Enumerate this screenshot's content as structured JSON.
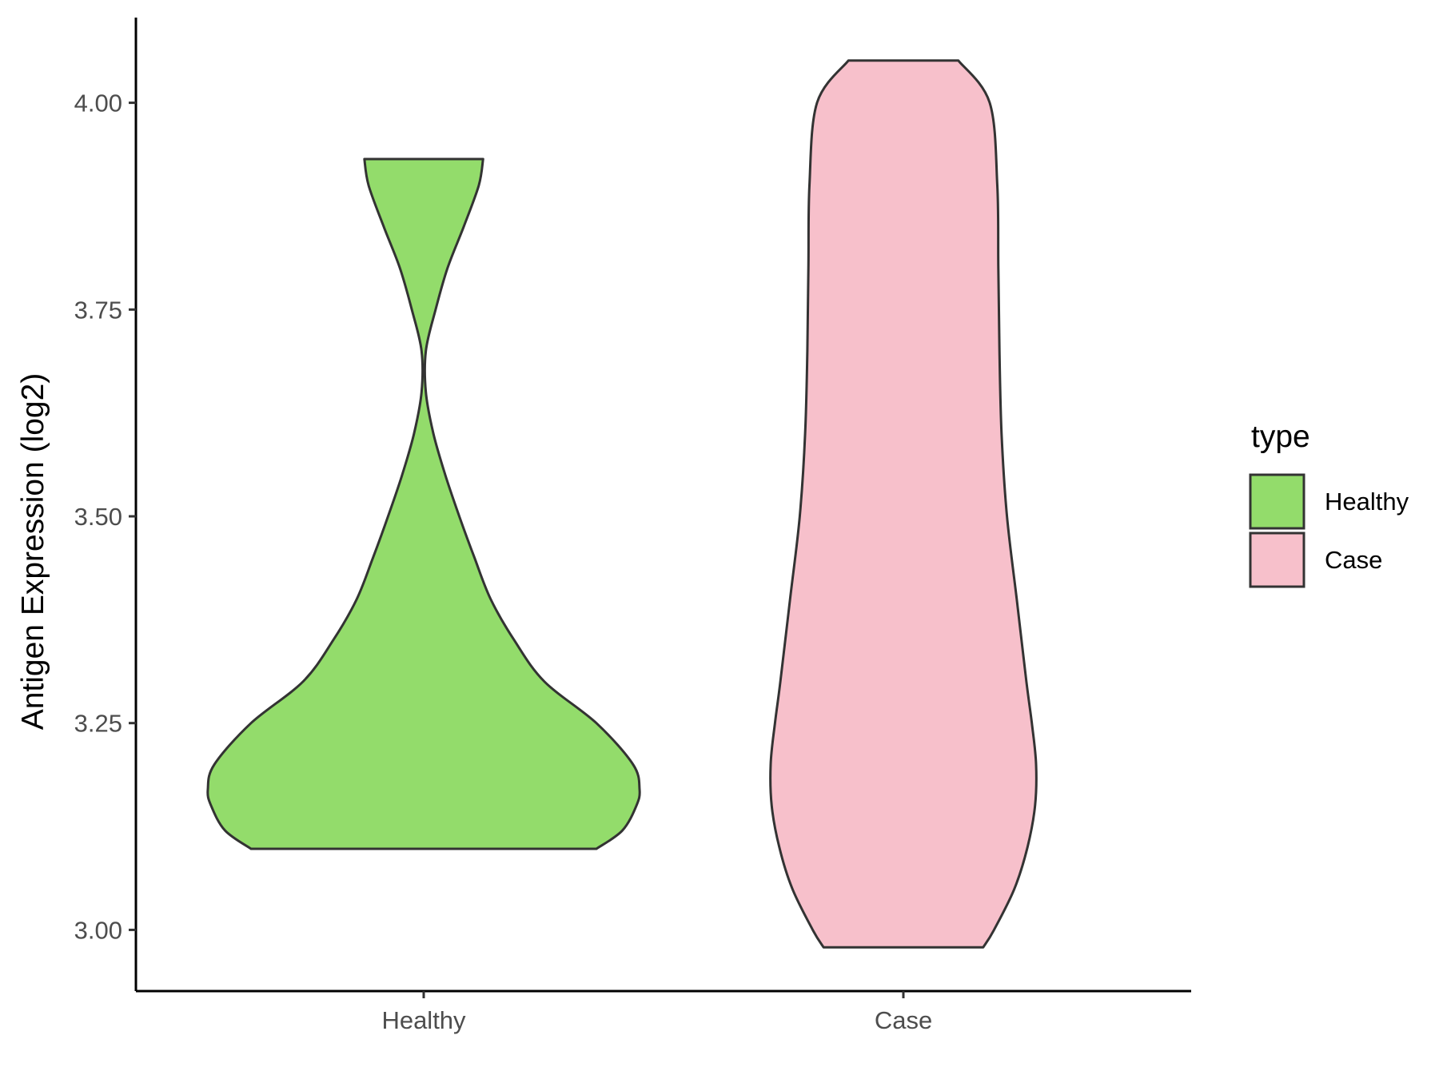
{
  "chart_data": {
    "type": "violin",
    "xlabel": "",
    "ylabel": "Antigen Expression (log2)",
    "categories": [
      "Healthy",
      "Case"
    ],
    "ylim": [
      2.926,
      4.103
    ],
    "yticks": [
      3.0,
      3.25,
      3.5,
      3.75,
      4.0
    ],
    "ytick_labels": [
      "3.00",
      "3.25",
      "3.50",
      "3.75",
      "4.00"
    ],
    "grid": false,
    "legend": {
      "title": "type",
      "placement": "right",
      "entries": [
        {
          "label": "Healthy",
          "color": "#93DC6B"
        },
        {
          "label": "Case",
          "color": "#F7C0CB"
        }
      ]
    },
    "series": [
      {
        "category": "Healthy",
        "color": "#93DC6B",
        "min": 3.098,
        "max": 3.932,
        "density_profile": [
          [
            3.098,
            0.8
          ],
          [
            3.12,
            0.92
          ],
          [
            3.15,
            0.985
          ],
          [
            3.17,
            1.0
          ],
          [
            3.2,
            0.97
          ],
          [
            3.25,
            0.8
          ],
          [
            3.3,
            0.56
          ],
          [
            3.35,
            0.42
          ],
          [
            3.4,
            0.31
          ],
          [
            3.45,
            0.235
          ],
          [
            3.5,
            0.165
          ],
          [
            3.55,
            0.1
          ],
          [
            3.6,
            0.045
          ],
          [
            3.65,
            0.01
          ],
          [
            3.7,
            0.01
          ],
          [
            3.75,
            0.055
          ],
          [
            3.8,
            0.11
          ],
          [
            3.85,
            0.185
          ],
          [
            3.9,
            0.255
          ],
          [
            3.932,
            0.275
          ]
        ]
      },
      {
        "category": "Case",
        "color": "#F7C0CB",
        "min": 2.979,
        "max": 4.051,
        "density_profile": [
          [
            2.979,
            0.37
          ],
          [
            3.0,
            0.42
          ],
          [
            3.05,
            0.515
          ],
          [
            3.1,
            0.575
          ],
          [
            3.15,
            0.61
          ],
          [
            3.2,
            0.615
          ],
          [
            3.25,
            0.595
          ],
          [
            3.3,
            0.57
          ],
          [
            3.4,
            0.525
          ],
          [
            3.5,
            0.48
          ],
          [
            3.6,
            0.455
          ],
          [
            3.7,
            0.445
          ],
          [
            3.8,
            0.44
          ],
          [
            3.9,
            0.435
          ],
          [
            4.0,
            0.4
          ],
          [
            4.051,
            0.255
          ]
        ]
      }
    ]
  }
}
